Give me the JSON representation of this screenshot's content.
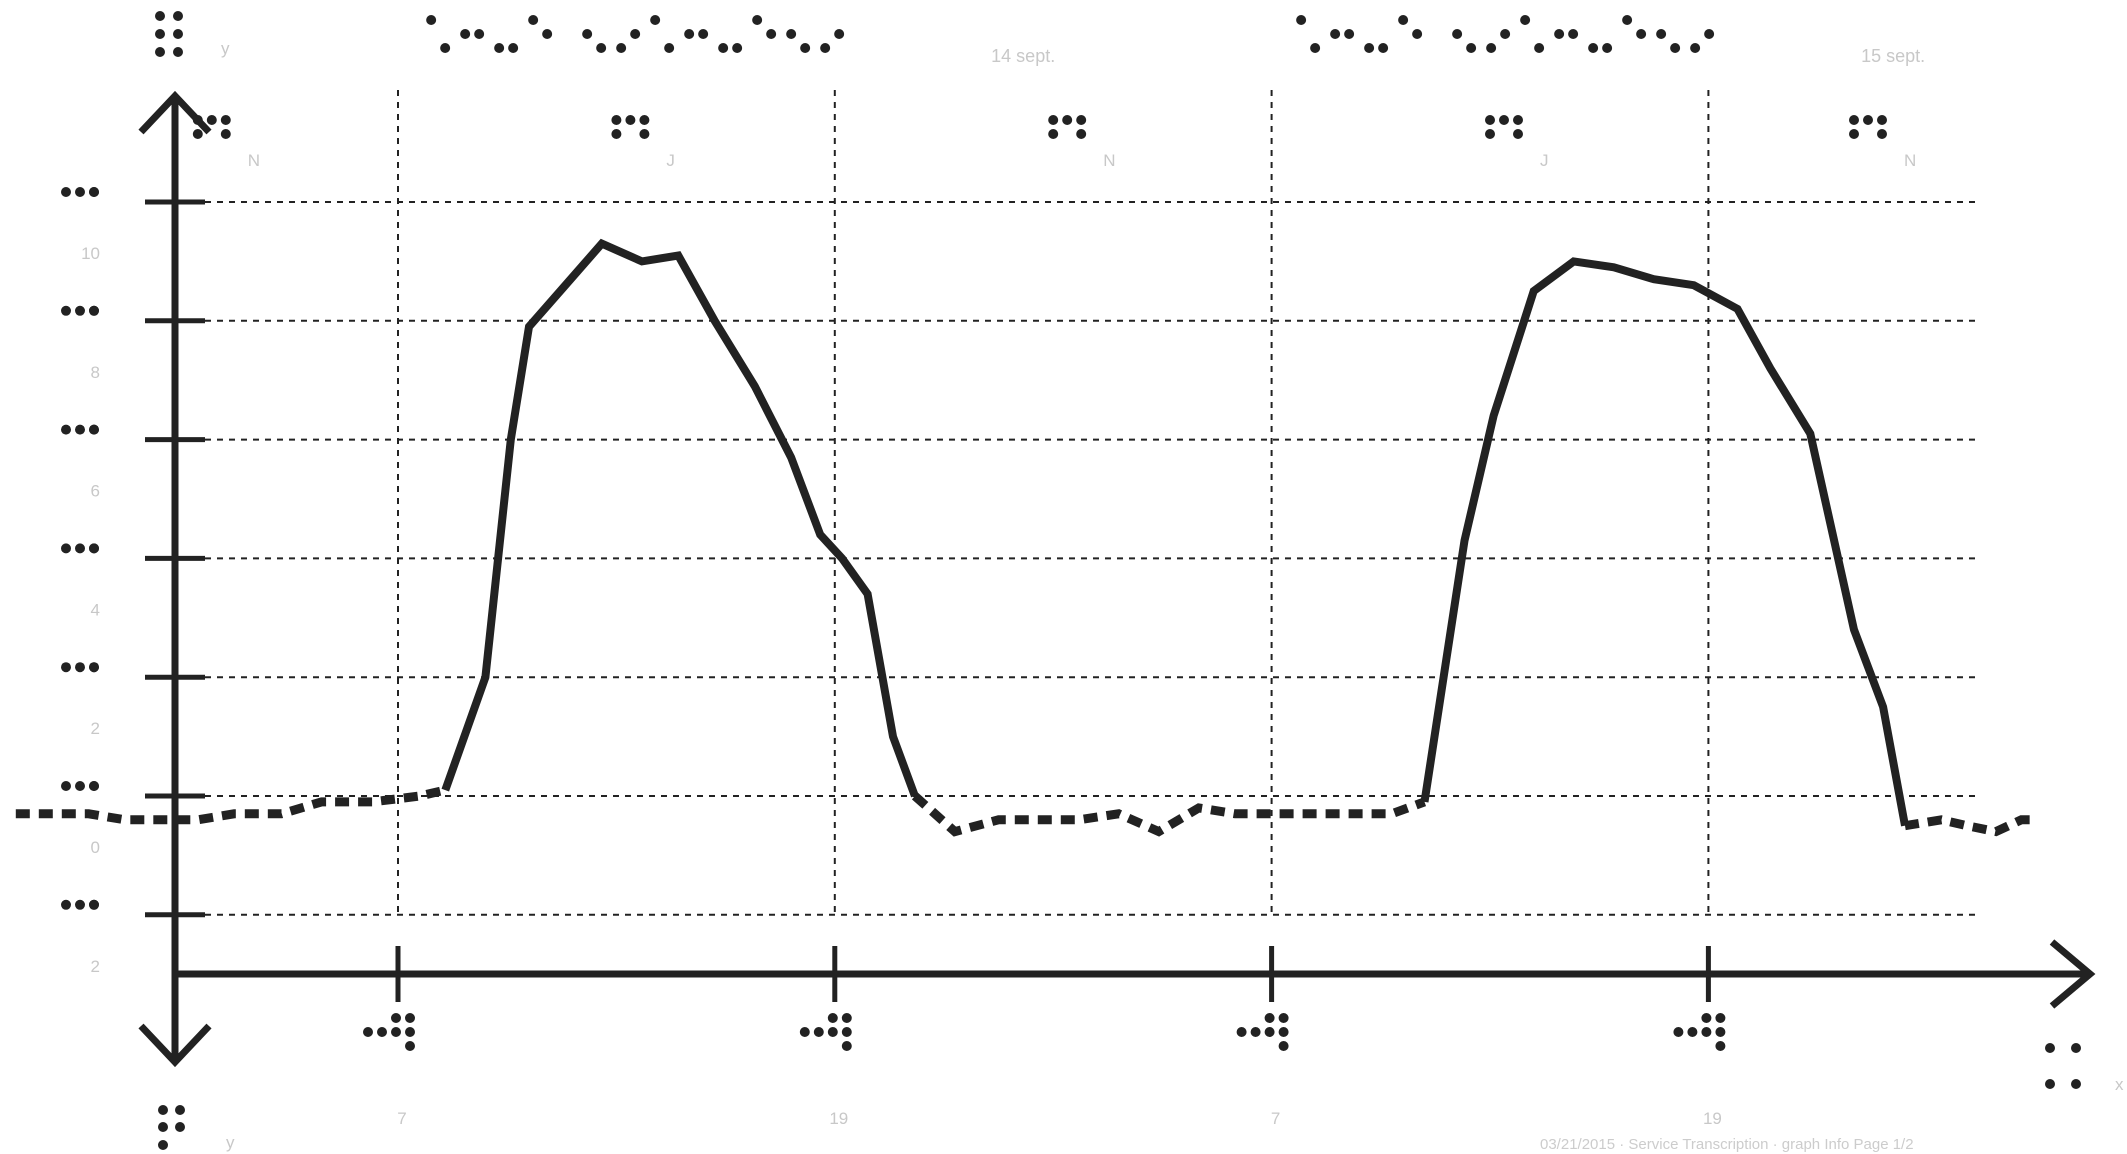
{
  "chart_data": {
    "type": "line",
    "title": "",
    "ylabel": "y",
    "xlabel": "x",
    "ylim": [
      -3,
      11
    ],
    "yticks": [
      {
        "value": 10,
        "label": "10"
      },
      {
        "value": 8,
        "label": "8"
      },
      {
        "value": 6,
        "label": "6"
      },
      {
        "value": 4,
        "label": "4"
      },
      {
        "value": 2,
        "label": "2"
      },
      {
        "value": 0,
        "label": "0"
      },
      {
        "value": -2,
        "label": "2"
      }
    ],
    "xticks": [
      {
        "t": 7,
        "label": "7"
      },
      {
        "t": 19,
        "label": "19"
      },
      {
        "t": 31,
        "label": "7"
      },
      {
        "t": 43,
        "label": "19"
      }
    ],
    "x_range_hours": [
      -4.5,
      52
    ],
    "periods": [
      {
        "label": "N",
        "t": 1.5
      },
      {
        "label": "J",
        "t": 13
      },
      {
        "label": "N",
        "t": 25
      },
      {
        "label": "J",
        "t": 37
      },
      {
        "label": "N",
        "t": 47
      }
    ],
    "dates": [
      {
        "label": "14 sept.",
        "t": 18.9
      },
      {
        "label": "15 sept.",
        "t": 42.8
      }
    ],
    "legend": "none",
    "grid": true,
    "series": [
      {
        "style": "dashed",
        "points": [
          [
            -3.5,
            -0.3
          ],
          [
            -2.5,
            -0.3
          ],
          [
            -1.5,
            -0.3
          ],
          [
            -0.5,
            -0.4
          ],
          [
            0.5,
            -0.4
          ],
          [
            1.5,
            -0.4
          ],
          [
            2.5,
            -0.3
          ],
          [
            3.8,
            -0.3
          ],
          [
            4.9,
            -0.1
          ],
          [
            6.3,
            -0.1
          ],
          [
            7.6,
            0.0
          ],
          [
            8.3,
            0.1
          ]
        ]
      },
      {
        "style": "solid",
        "points": [
          [
            8.3,
            0.1
          ],
          [
            9.4,
            2.0
          ],
          [
            10.1,
            6.0
          ],
          [
            10.6,
            7.9
          ],
          [
            11.6,
            8.6
          ],
          [
            12.6,
            9.3
          ],
          [
            13.7,
            9.0
          ],
          [
            14.7,
            9.1
          ],
          [
            15.7,
            8.0
          ],
          [
            16.8,
            6.9
          ],
          [
            17.8,
            5.7
          ],
          [
            18.6,
            4.4
          ],
          [
            19.2,
            4.0
          ],
          [
            19.9,
            3.4
          ],
          [
            20.6,
            1.0
          ],
          [
            21.2,
            0.0
          ]
        ]
      },
      {
        "style": "dashed",
        "points": [
          [
            21.2,
            0.0
          ],
          [
            22.3,
            -0.6
          ],
          [
            23.5,
            -0.4
          ],
          [
            24.6,
            -0.4
          ],
          [
            25.7,
            -0.4
          ],
          [
            26.8,
            -0.3
          ],
          [
            27.9,
            -0.6
          ],
          [
            29.0,
            -0.2
          ],
          [
            30.0,
            -0.3
          ],
          [
            31.2,
            -0.3
          ],
          [
            32.3,
            -0.3
          ],
          [
            33.3,
            -0.3
          ],
          [
            34.3,
            -0.3
          ],
          [
            35.2,
            -0.1
          ]
        ]
      },
      {
        "style": "solid",
        "points": [
          [
            35.2,
            -0.1
          ],
          [
            36.3,
            4.3
          ],
          [
            37.1,
            6.4
          ],
          [
            38.2,
            8.5
          ],
          [
            39.3,
            9.0
          ],
          [
            40.4,
            8.9
          ],
          [
            41.5,
            8.7
          ],
          [
            42.6,
            8.6
          ],
          [
            43.8,
            8.2
          ],
          [
            44.7,
            7.2
          ],
          [
            45.8,
            6.1
          ],
          [
            47.0,
            2.8
          ],
          [
            47.8,
            1.5
          ],
          [
            48.4,
            -0.5
          ]
        ]
      },
      {
        "style": "dashed",
        "points": [
          [
            48.4,
            -0.5
          ],
          [
            49.4,
            -0.4
          ],
          [
            50.1,
            -0.5
          ],
          [
            50.9,
            -0.6
          ],
          [
            51.6,
            -0.4
          ],
          [
            52.0,
            -0.4
          ]
        ]
      }
    ]
  },
  "footer": "03/21/2015 · Service Transcription · graph Info Page 1/2"
}
